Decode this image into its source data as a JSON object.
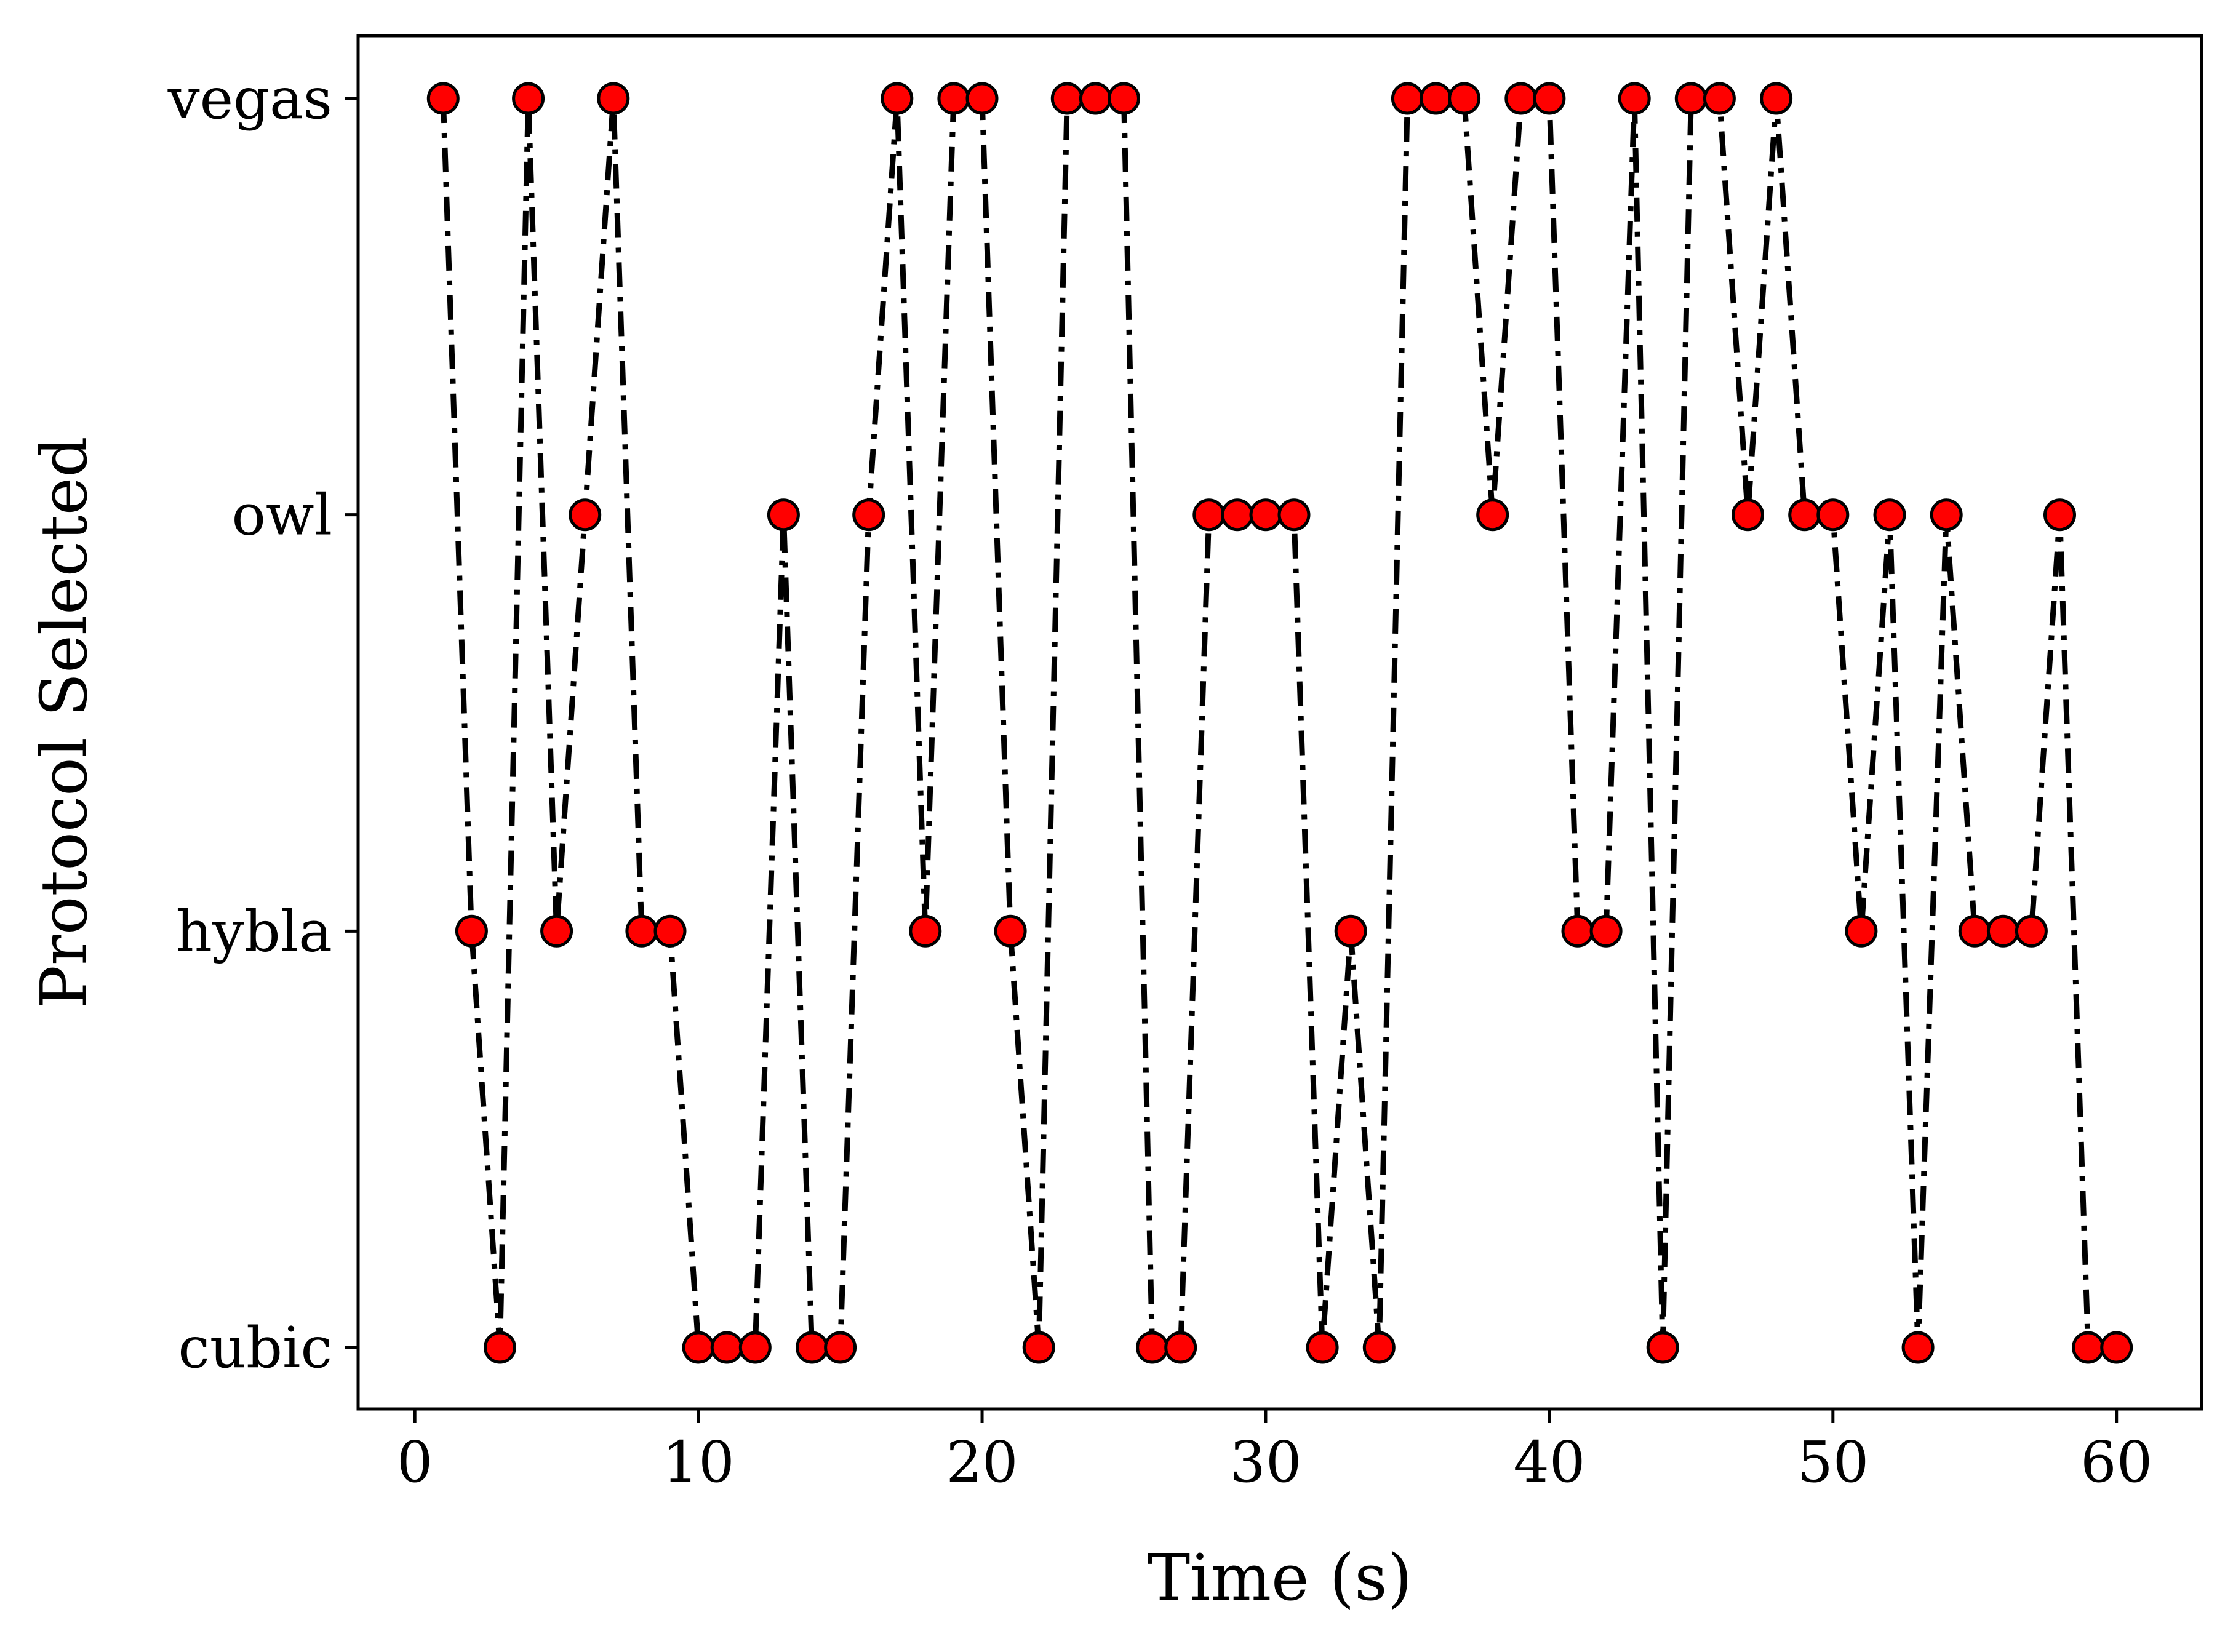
{
  "chart_data": {
    "type": "line",
    "title": "",
    "xlabel": "Time (s)",
    "ylabel": "Protocol Selected",
    "xlim": [
      -2,
      63
    ],
    "x_ticks": [
      0,
      10,
      20,
      30,
      40,
      50,
      60
    ],
    "x_tick_labels": [
      "0",
      "10",
      "20",
      "30",
      "40",
      "50",
      "60"
    ],
    "categories_y": [
      "cubic",
      "hybla",
      "owl",
      "vegas"
    ],
    "grid": false,
    "legend": "none",
    "series": [
      {
        "name": "Protocol Selected",
        "line_style": "dash-dot",
        "line_color": "#000000",
        "marker_fill": "#ff0000",
        "marker_edge": "#000000",
        "x": [
          1,
          2,
          3,
          4,
          5,
          6,
          7,
          8,
          9,
          10,
          11,
          12,
          13,
          14,
          15,
          16,
          17,
          18,
          19,
          20,
          21,
          22,
          23,
          24,
          25,
          26,
          27,
          28,
          29,
          30,
          31,
          32,
          33,
          34,
          35,
          36,
          37,
          38,
          39,
          40,
          41,
          42,
          43,
          44,
          45,
          46,
          47,
          48,
          49,
          50,
          51,
          52,
          53,
          54,
          55,
          56,
          57,
          58,
          59,
          60
        ],
        "values": [
          "vegas",
          "hybla",
          "cubic",
          "vegas",
          "hybla",
          "owl",
          "vegas",
          "hybla",
          "hybla",
          "cubic",
          "cubic",
          "cubic",
          "owl",
          "cubic",
          "cubic",
          "owl",
          "vegas",
          "hybla",
          "vegas",
          "vegas",
          "hybla",
          "cubic",
          "vegas",
          "vegas",
          "vegas",
          "cubic",
          "cubic",
          "owl",
          "owl",
          "owl",
          "owl",
          "cubic",
          "hybla",
          "cubic",
          "vegas",
          "vegas",
          "vegas",
          "owl",
          "vegas",
          "vegas",
          "hybla",
          "hybla",
          "vegas",
          "cubic",
          "vegas",
          "vegas",
          "owl",
          "vegas",
          "owl",
          "owl",
          "hybla",
          "owl",
          "cubic",
          "owl",
          "hybla",
          "hybla",
          "hybla",
          "owl",
          "cubic",
          "cubic"
        ]
      }
    ]
  }
}
